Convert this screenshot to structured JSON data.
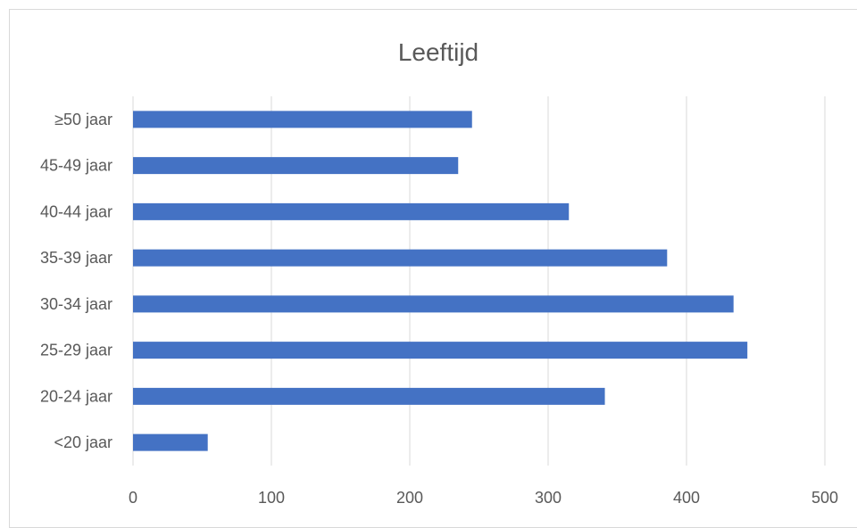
{
  "chart_data": {
    "type": "bar",
    "orientation": "horizontal",
    "title": "Leeftijd",
    "xlabel": "",
    "ylabel": "",
    "categories": [
      "≥50 jaar",
      "45-49 jaar",
      "40-44 jaar",
      "35-39 jaar",
      "30-34 jaar",
      "25-29 jaar",
      "20-24 jaar",
      "<20 jaar"
    ],
    "values": [
      245,
      235,
      315,
      386,
      434,
      444,
      341,
      54
    ],
    "xlim": [
      0,
      500
    ],
    "xticks": [
      0,
      100,
      200,
      300,
      400,
      500
    ],
    "grid": "vertical",
    "legend": "none",
    "bar_color": "#4472c4"
  }
}
